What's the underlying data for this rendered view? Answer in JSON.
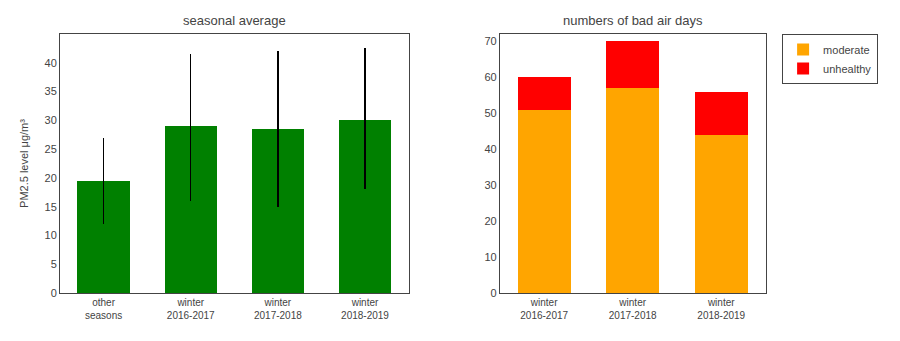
{
  "chart_data": [
    {
      "type": "bar",
      "title": "seasonal average",
      "ylabel": "PM2.5 level μg/m³",
      "categories": [
        "other\nseasons",
        "winter\n2016-2017",
        "winter\n2017-2018",
        "winter\n2018-2019"
      ],
      "values": [
        19.5,
        29.0,
        28.5,
        30.0
      ],
      "errors_upper": [
        7.5,
        12.5,
        13.5,
        12.5
      ],
      "errors_lower": [
        7.5,
        13.0,
        13.5,
        12.0
      ],
      "color": "#008000",
      "ylim": [
        0,
        45
      ],
      "yticks": [
        0,
        5,
        10,
        15,
        20,
        25,
        30,
        35,
        40
      ],
      "grid": false
    },
    {
      "type": "bar",
      "stacked": true,
      "title": "numbers of bad air days",
      "categories": [
        "winter\n2016-2017",
        "winter\n2017-2018",
        "winter\n2018-2019"
      ],
      "series": [
        {
          "name": "moderate",
          "color": "#FFA500",
          "values": [
            51,
            57,
            44
          ]
        },
        {
          "name": "unhealthy",
          "color": "#FF0000",
          "values": [
            9,
            13,
            12
          ]
        }
      ],
      "ylim": [
        0,
        72
      ],
      "yticks": [
        0,
        10,
        20,
        30,
        40,
        50,
        60,
        70
      ],
      "grid": false,
      "legend": "upper right"
    }
  ]
}
